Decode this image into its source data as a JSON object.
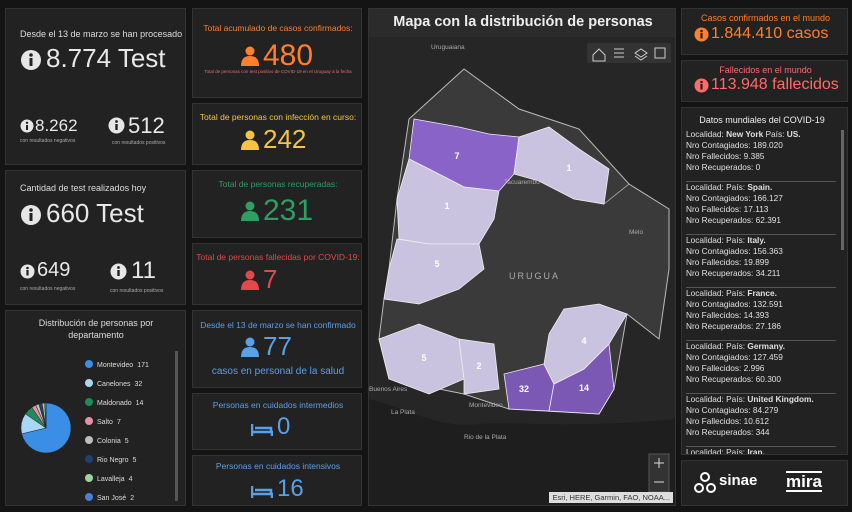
{
  "left": {
    "tests_total": {
      "caption": "Desde el 13 de marzo se han procesado",
      "value": "8.774 Test",
      "negative": "8.262",
      "negative_caption": "con resultados negativos",
      "positive": "512",
      "positive_caption": "con resultados positivos"
    },
    "tests_today": {
      "caption": "Cantidad de test realizados hoy",
      "value": "660 Test",
      "negative": "649",
      "negative_caption": "con resultados negativos",
      "positive": "11",
      "positive_caption": "con resultados positivos"
    },
    "distribution": {
      "title": "Distribución de personas por departamento",
      "items": [
        {
          "name": "Montevideo",
          "value": 171,
          "color": "#3a8ee6"
        },
        {
          "name": "Canelones",
          "value": 32,
          "color": "#a9d6f2"
        },
        {
          "name": "Maldonado",
          "value": 14,
          "color": "#1f8a5a"
        },
        {
          "name": "Salto",
          "value": 7,
          "color": "#e98fa5"
        },
        {
          "name": "Colonia",
          "value": 5,
          "color": "#bdbdbd"
        },
        {
          "name": "Rio Negro",
          "value": 5,
          "color": "#22406e"
        },
        {
          "name": "Lavalleja",
          "value": 4,
          "color": "#9fd4a0"
        },
        {
          "name": "San José",
          "value": 2,
          "color": "#4a7fd6"
        }
      ]
    }
  },
  "indicators": [
    {
      "label": "Total acumulado de casos confirmados:",
      "value": "480",
      "note": "Total de personas con test positivo de COVID-19 en el Uruguay a la fecha",
      "color": "#ff7f2a"
    },
    {
      "label": "Total de personas con infección en curso:",
      "value": "242",
      "color": "#f5c542"
    },
    {
      "label": "Total de personas recuperadas:",
      "value": "231",
      "color": "#2e9e62"
    },
    {
      "label": "Total de personas fallecidas por COVID-19:",
      "value": "7",
      "color": "#e04a4a"
    },
    {
      "label": "Desde el 13 de marzo se han confirmado",
      "value": "77",
      "note": "casos en personal de la salud",
      "color": "#5aa0e6"
    },
    {
      "label": "Personas en cuidados intermedios",
      "value": "0",
      "color": "#5aa0e6"
    },
    {
      "label": "Personas en cuidados intensivos",
      "value": "16",
      "color": "#5aa0e6"
    }
  ],
  "map": {
    "title": "Mapa con la distribución de personas",
    "regions": [
      {
        "value": 7,
        "color": "#8a63c9"
      },
      {
        "value": 1,
        "color": "#c9c3e0"
      },
      {
        "value": 1,
        "color": "#c9c3e0"
      },
      {
        "value": 5,
        "color": "#c9c3e0"
      },
      {
        "value": 5,
        "color": "#c9c3e0"
      },
      {
        "value": 2,
        "color": "#c9c3e0"
      },
      {
        "value": 32,
        "color": "#7a58b4"
      },
      {
        "value": 14,
        "color": "#7a58b4"
      },
      {
        "value": 4,
        "color": "#c9c3e0"
      }
    ],
    "places": [
      "Uruguaiana",
      "Tacuarembó",
      "URUGUA",
      "Melo",
      "Buenos Aires",
      "La Plata",
      "Montevideo",
      "Rio de la Plata"
    ],
    "attribution": "Esri, HERE, Garmin, FAO, NOAA..."
  },
  "world": {
    "confirmed": {
      "label": "Casos confirmados en el mundo",
      "value": "1.844.410 casos"
    },
    "deaths": {
      "label": "Fallecidos en el mundo",
      "value": "113.948 fallecidos"
    },
    "list": {
      "title": "Datos mundiales del COVID-19",
      "field_labels": {
        "localidad": "Localidad:",
        "pais": "País:",
        "contagiados": "Nro Contagiados:",
        "fallecidos": "Nro Fallecidos:",
        "recuperados": "Nro Recuperados:"
      },
      "entries": [
        {
          "localidad": "New York",
          "pais": "US.",
          "contagiados": "189.020",
          "fallecidos": "9.385",
          "recuperados": "0"
        },
        {
          "pais": "Spain.",
          "contagiados": "166.127",
          "fallecidos": "17.113",
          "recuperados": "62.391"
        },
        {
          "pais": "Italy.",
          "contagiados": "156.363",
          "fallecidos": "19.899",
          "recuperados": "34.211"
        },
        {
          "pais": "France.",
          "contagiados": "132.591",
          "fallecidos": "14.393",
          "recuperados": "27.186"
        },
        {
          "pais": "Germany.",
          "contagiados": "127.459",
          "fallecidos": "2.996",
          "recuperados": "60.300"
        },
        {
          "pais": "United Kingdom.",
          "contagiados": "84.279",
          "fallecidos": "10.612",
          "recuperados": "344"
        },
        {
          "pais": "Iran."
        }
      ]
    }
  },
  "logos": [
    "sinae",
    "mira"
  ]
}
